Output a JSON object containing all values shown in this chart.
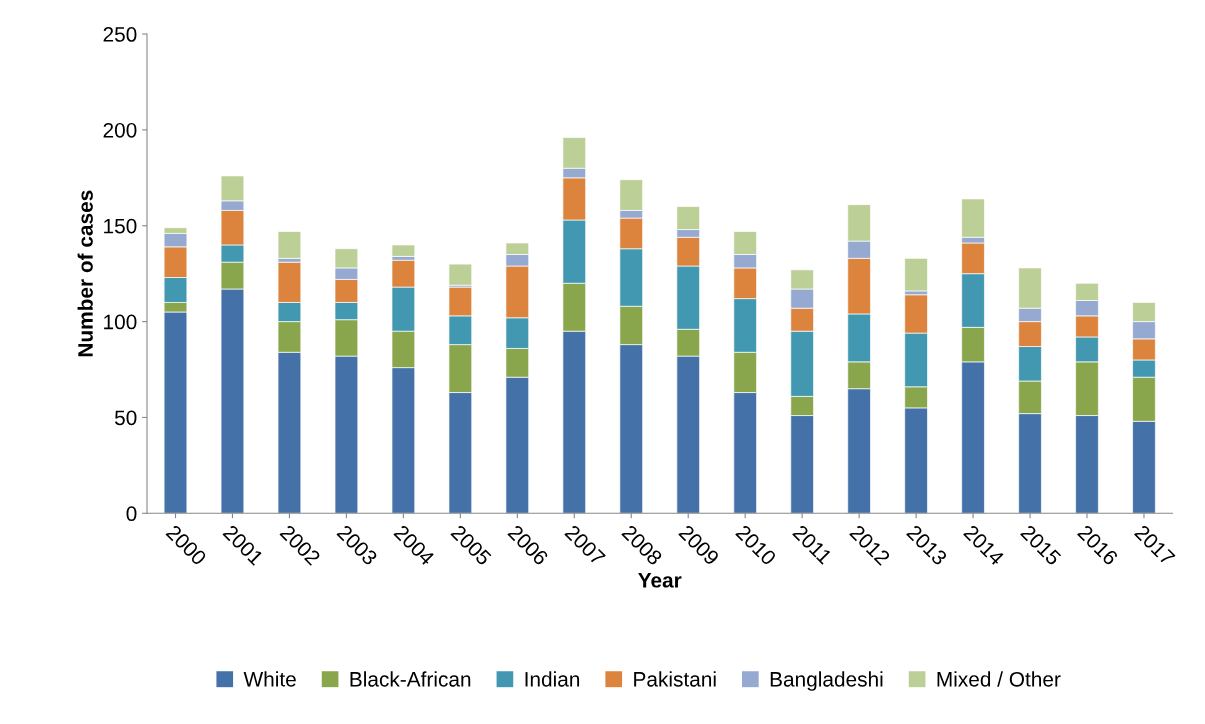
{
  "chart_data": {
    "type": "bar",
    "stacked": true,
    "xlabel": "Year",
    "ylabel": "Number of cases",
    "categories": [
      "2000",
      "2001",
      "2002",
      "2003",
      "2004",
      "2005",
      "2006",
      "2007",
      "2008",
      "2009",
      "2010",
      "2011",
      "2012",
      "2013",
      "2014",
      "2015",
      "2016",
      "2017"
    ],
    "series": [
      {
        "name": "White",
        "color": "#4472a8",
        "values": [
          105,
          117,
          84,
          82,
          76,
          63,
          71,
          95,
          88,
          82,
          63,
          51,
          65,
          55,
          79,
          52,
          51,
          48
        ]
      },
      {
        "name": "Black-African",
        "color": "#8aa64c",
        "values": [
          5,
          14,
          16,
          19,
          19,
          25,
          15,
          25,
          20,
          14,
          21,
          10,
          14,
          11,
          18,
          17,
          28,
          23
        ]
      },
      {
        "name": "Indian",
        "color": "#4298b0",
        "values": [
          13,
          9,
          10,
          9,
          23,
          15,
          16,
          33,
          30,
          33,
          28,
          34,
          25,
          28,
          28,
          18,
          13,
          9
        ]
      },
      {
        "name": "Pakistani",
        "color": "#dc843e",
        "values": [
          16,
          18,
          21,
          12,
          14,
          15,
          27,
          22,
          16,
          15,
          16,
          12,
          29,
          20,
          16,
          13,
          11,
          11
        ]
      },
      {
        "name": "Bangladeshi",
        "color": "#95a9d1",
        "values": [
          7,
          5,
          2,
          6,
          2,
          1,
          6,
          5,
          4,
          4,
          7,
          10,
          9,
          2,
          3,
          7,
          8,
          9
        ]
      },
      {
        "name": "Mixed / Other",
        "color": "#bccf97",
        "values": [
          3,
          13,
          14,
          10,
          6,
          11,
          6,
          16,
          16,
          12,
          12,
          10,
          19,
          17,
          20,
          21,
          9,
          10
        ]
      }
    ],
    "ylim": [
      0,
      250
    ],
    "yticks": [
      0,
      50,
      100,
      150,
      200,
      250
    ],
    "grid": false,
    "legend": "bottom"
  }
}
